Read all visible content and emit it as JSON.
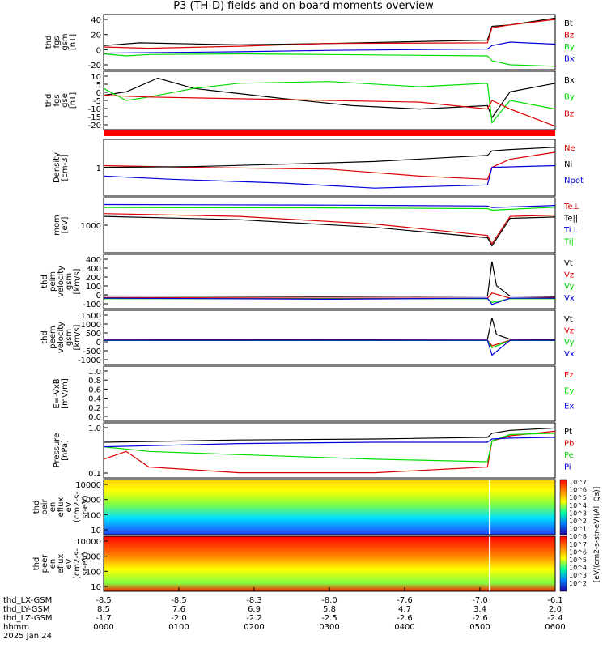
{
  "title": "P3 (TH-D) fields and on-board moments overview",
  "chart_data": [
    {
      "type": "line",
      "panel": "fgs-gsm",
      "ylabel_lines": [
        "thd",
        "fgs",
        "gsm",
        "[nT]"
      ],
      "yticks": [
        "40",
        "20",
        "0",
        "-20"
      ],
      "ylim": [
        -25,
        55
      ],
      "series": [
        {
          "name": "Bt",
          "color": "#000000",
          "x": [
            0,
            0.08,
            0.3,
            0.5,
            0.85,
            0.86,
            0.9,
            1
          ],
          "y": [
            10,
            14,
            11,
            13,
            18,
            38,
            40,
            50
          ]
        },
        {
          "name": "Bz",
          "color": "#dd0000",
          "x": [
            0,
            0.1,
            0.3,
            0.5,
            0.85,
            0.86,
            0.9,
            1
          ],
          "y": [
            8,
            6,
            9,
            13,
            14,
            36,
            40,
            48
          ]
        },
        {
          "name": "By",
          "color": "#00dd00",
          "x": [
            0,
            0.05,
            0.1,
            0.3,
            0.5,
            0.85,
            0.86,
            0.9,
            1
          ],
          "y": [
            -2,
            -5,
            -3,
            -2,
            -3,
            -5,
            -12,
            -18,
            -20
          ]
        },
        {
          "name": "Bx",
          "color": "#0000dd",
          "x": [
            0,
            0.3,
            0.5,
            0.85,
            0.86,
            0.9,
            1
          ],
          "y": [
            -1,
            1,
            3,
            5,
            10,
            15,
            12
          ]
        }
      ]
    },
    {
      "type": "line",
      "panel": "fgs-gse",
      "ylabel_lines": [
        "thd",
        "fgs",
        "gse",
        "[nT]"
      ],
      "yticks": [
        "10",
        "5",
        "0",
        "-5",
        "-10",
        "-15",
        "-20"
      ],
      "ylim": [
        -22,
        12
      ],
      "series": [
        {
          "name": "Bx",
          "color": "#000000",
          "x": [
            0,
            0.05,
            0.12,
            0.2,
            0.4,
            0.55,
            0.7,
            0.85,
            0.86,
            0.9,
            1
          ],
          "y": [
            -2,
            0,
            8,
            2,
            -4,
            -8,
            -10,
            -8,
            -15,
            0,
            5
          ]
        },
        {
          "name": "By",
          "color": "#00dd00",
          "x": [
            0,
            0.05,
            0.1,
            0.2,
            0.3,
            0.5,
            0.7,
            0.85,
            0.86,
            0.9,
            1
          ],
          "y": [
            2,
            -5,
            -3,
            2,
            5,
            6,
            3,
            5,
            -18,
            -5,
            -10
          ]
        },
        {
          "name": "Bz",
          "color": "#dd0000",
          "x": [
            0,
            0.1,
            0.3,
            0.5,
            0.7,
            0.85,
            0.86,
            0.9,
            1
          ],
          "y": [
            -2,
            -3,
            -4,
            -5,
            -6,
            -10,
            -5,
            -10,
            -20
          ]
        }
      ]
    },
    {
      "type": "line",
      "panel": "density",
      "ylabel_lines": [
        "Density",
        "[cm-3]"
      ],
      "yticks": [
        "1"
      ],
      "scale": "log",
      "series": [
        {
          "name": "Ne",
          "color": "#dd0000",
          "x": [
            0,
            0.2,
            0.5,
            0.7,
            0.85,
            0.86,
            0.9,
            1
          ],
          "y": [
            0.55,
            0.5,
            0.45,
            0.3,
            0.25,
            0.5,
            0.8,
            1.2
          ]
        },
        {
          "name": "Ni",
          "color": "#000000",
          "x": [
            0,
            0.2,
            0.4,
            0.6,
            0.85,
            0.86,
            0.9,
            1
          ],
          "y": [
            0.5,
            0.52,
            0.6,
            0.7,
            1.0,
            1.3,
            1.4,
            1.6
          ]
        },
        {
          "name": "Npot",
          "color": "#0000dd",
          "x": [
            0,
            0.15,
            0.4,
            0.6,
            0.85,
            0.86,
            1
          ],
          "y": [
            0.3,
            0.25,
            0.2,
            0.15,
            0.18,
            0.5,
            0.55
          ]
        }
      ]
    },
    {
      "type": "line",
      "panel": "temperature",
      "ylabel_lines": [
        "mom",
        "[eV]"
      ],
      "yticks": [
        "1000"
      ],
      "scale": "log",
      "series": [
        {
          "name": "Te⊥",
          "color": "#dd0000",
          "x": [
            0,
            0.3,
            0.6,
            0.85,
            0.86,
            0.9,
            1
          ],
          "y": [
            3000,
            2500,
            1500,
            700,
            400,
            2500,
            2700
          ]
        },
        {
          "name": "Te||",
          "color": "#000000",
          "x": [
            0,
            0.3,
            0.6,
            0.85,
            0.86,
            0.9,
            1
          ],
          "y": [
            2500,
            2000,
            1200,
            600,
            350,
            2200,
            2400
          ]
        },
        {
          "name": "Ti⊥",
          "color": "#0000dd",
          "x": [
            0,
            0.5,
            0.85,
            0.86,
            1
          ],
          "y": [
            5500,
            5300,
            5000,
            4500,
            5200
          ]
        },
        {
          "name": "Ti||",
          "color": "#00dd00",
          "x": [
            0,
            0.5,
            0.85,
            0.86,
            1
          ],
          "y": [
            4500,
            4400,
            4200,
            3800,
            4600
          ]
        }
      ]
    },
    {
      "type": "line",
      "panel": "peim-velocity",
      "ylabel_lines": [
        "thd",
        "peim",
        "velocity",
        "gsm",
        "[km/s]"
      ],
      "yticks": [
        "400",
        "300",
        "200",
        "100",
        "0",
        "-100"
      ],
      "ylim": [
        -100,
        420
      ],
      "series": [
        {
          "name": "Vt",
          "color": "#000000",
          "x": [
            0,
            0.5,
            0.85,
            0.86,
            0.87,
            0.9,
            1
          ],
          "y": [
            20,
            15,
            20,
            350,
            120,
            20,
            15
          ]
        },
        {
          "name": "Vz",
          "color": "#dd0000",
          "x": [
            0,
            0.5,
            0.85,
            0.86,
            0.9,
            1
          ],
          "y": [
            5,
            0,
            0,
            50,
            0,
            5
          ]
        },
        {
          "name": "Vy",
          "color": "#00dd00",
          "x": [
            0,
            0.5,
            0.85,
            0.86,
            0.9,
            1
          ],
          "y": [
            -5,
            -5,
            -5,
            -40,
            -5,
            -5
          ]
        },
        {
          "name": "Vx",
          "color": "#0000dd",
          "x": [
            0,
            0.5,
            0.85,
            0.86,
            0.9,
            1
          ],
          "y": [
            0,
            -10,
            0,
            -60,
            0,
            0
          ]
        }
      ]
    },
    {
      "type": "line",
      "panel": "peem-velocity",
      "ylabel_lines": [
        "thd",
        "peem",
        "velocity",
        "gsm",
        "[km/s]"
      ],
      "yticks": [
        "1500",
        "1000",
        "500",
        "0",
        "-500",
        "-1000"
      ],
      "ylim": [
        -1300,
        1600
      ],
      "series": [
        {
          "name": "Vt",
          "color": "#000000",
          "x": [
            0,
            0.5,
            0.85,
            0.86,
            0.87,
            0.9,
            1
          ],
          "y": [
            50,
            40,
            60,
            1200,
            300,
            50,
            40
          ]
        },
        {
          "name": "Vz",
          "color": "#dd0000",
          "x": [
            0,
            0.5,
            0.85,
            0.86,
            0.9,
            1
          ],
          "y": [
            0,
            0,
            0,
            -300,
            0,
            0
          ]
        },
        {
          "name": "Vy",
          "color": "#00dd00",
          "x": [
            0,
            0.5,
            0.85,
            0.86,
            0.9,
            1
          ],
          "y": [
            -20,
            -20,
            -20,
            -400,
            -20,
            -20
          ]
        },
        {
          "name": "Vx",
          "color": "#0000dd",
          "x": [
            0,
            0.5,
            0.85,
            0.86,
            0.9,
            1
          ],
          "y": [
            -10,
            -10,
            -10,
            -800,
            -10,
            -10
          ]
        }
      ]
    },
    {
      "type": "line",
      "panel": "efield",
      "ylabel_lines": [
        "E=-VxB",
        "[mV/m]"
      ],
      "yticks": [
        "1.0",
        "0.8",
        "0.6",
        "0.4",
        "0.2",
        "0.0"
      ],
      "ylim": [
        0,
        1
      ],
      "series": [
        {
          "name": "Ez",
          "color": "#dd0000",
          "x": [],
          "y": []
        },
        {
          "name": "Ey",
          "color": "#00dd00",
          "x": [],
          "y": []
        },
        {
          "name": "Ex",
          "color": "#0000dd",
          "x": [],
          "y": []
        }
      ]
    },
    {
      "type": "line",
      "panel": "pressure",
      "ylabel_lines": [
        "Pressure",
        "[nPa]"
      ],
      "yticks": [
        "1.0",
        "0.1"
      ],
      "scale": "log",
      "series": [
        {
          "name": "Pt",
          "color": "#000000",
          "x": [
            0,
            0.3,
            0.6,
            0.85,
            0.86,
            0.9,
            1
          ],
          "y": [
            0.45,
            0.55,
            0.6,
            0.7,
            1.0,
            1.3,
            1.6
          ]
        },
        {
          "name": "Pb",
          "color": "#dd0000",
          "x": [
            0,
            0.05,
            0.1,
            0.3,
            0.6,
            0.85,
            0.86,
            0.9,
            1
          ],
          "y": [
            0.1,
            0.2,
            0.05,
            0.03,
            0.03,
            0.05,
            0.5,
            0.8,
            1.2
          ]
        },
        {
          "name": "Pe",
          "color": "#00dd00",
          "x": [
            0,
            0.1,
            0.3,
            0.6,
            0.85,
            0.86,
            0.9,
            1
          ],
          "y": [
            0.3,
            0.2,
            0.15,
            0.1,
            0.08,
            0.5,
            0.9,
            1.0
          ]
        },
        {
          "name": "Pi",
          "color": "#0000dd",
          "x": [
            0,
            0.3,
            0.6,
            0.85,
            0.86,
            0.9,
            1
          ],
          "y": [
            0.3,
            0.4,
            0.45,
            0.45,
            0.6,
            0.65,
            0.7
          ]
        }
      ]
    },
    {
      "type": "heatmap",
      "panel": "peir-en-eflux",
      "ylabel_lines": [
        "thd",
        "peir",
        "en",
        "eflux",
        "eV",
        "(cm2-s-",
        "sr-eV)"
      ],
      "yticks": [
        "10000",
        "1000",
        "100",
        "10"
      ]
    },
    {
      "type": "heatmap",
      "panel": "peer-en-eflux",
      "ylabel_lines": [
        "thd",
        "peer",
        "en",
        "eflux",
        "eV",
        "(cm2-s-",
        "sr-eV)"
      ],
      "yticks": [
        "10000",
        "1000",
        "100",
        "10"
      ]
    }
  ],
  "colorbar_label": "[eV/(cm2-s-str-eV)(All Qs)]",
  "colorbar_ticks": [
    "10^7",
    "10^6",
    "10^5",
    "10^4",
    "10^3",
    "10^2",
    "10^1",
    "10^8",
    "10^7",
    "10^6",
    "10^5",
    "10^4",
    "10^3",
    "10^2"
  ],
  "x_rows": [
    {
      "label": "thd_LX-GSM",
      "values": [
        "-8.5",
        "-8.5",
        "-8.3",
        "-8.0",
        "-7.6",
        "-7.0",
        "-6.1"
      ]
    },
    {
      "label": "thd_LY-GSM",
      "values": [
        "8.5",
        "7.6",
        "6.9",
        "5.8",
        "4.7",
        "3.4",
        "2.0"
      ]
    },
    {
      "label": "thd_LZ-GSM",
      "values": [
        "-1.7",
        "-2.0",
        "-2.2",
        "-2.5",
        "-2.6",
        "-2.6",
        "-2.4"
      ]
    },
    {
      "label": "hhmm",
      "values": [
        "0000",
        "0100",
        "0200",
        "0300",
        "0400",
        "0500",
        "0600"
      ]
    }
  ],
  "date": "2025 Jan 24"
}
